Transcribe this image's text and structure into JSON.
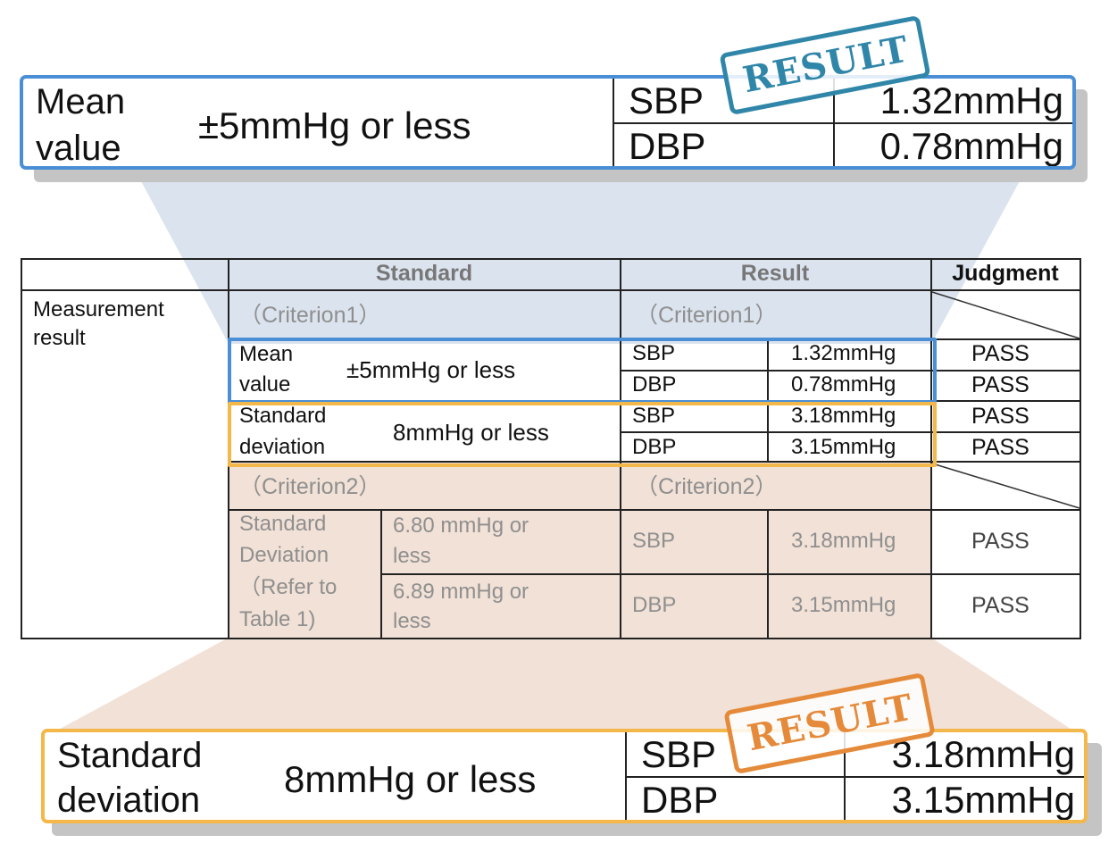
{
  "top_callout": {
    "label_line1": "Mean",
    "label_line2": "value",
    "standard": "±5mmHg or less",
    "rows": [
      {
        "name": "SBP",
        "value": "1.32mmHg"
      },
      {
        "name": "DBP",
        "value": "0.78mmHg"
      }
    ],
    "stamp": "RESULT"
  },
  "bottom_callout": {
    "label_line1": "Standard",
    "label_line2": "deviation",
    "standard": "8mmHg or less",
    "rows": [
      {
        "name": "SBP",
        "value": "3.18mmHg"
      },
      {
        "name": "DBP",
        "value": "3.15mmHg"
      }
    ],
    "stamp": "RESULT"
  },
  "table": {
    "headers": {
      "standard": "Standard",
      "result": "Result",
      "judgment": "Judgment"
    },
    "row_label_line1": "Measurement",
    "row_label_line2": "result",
    "criterion1": {
      "standard_label": "（Criterion1）",
      "result_label": "（Criterion1）",
      "mean": {
        "label_line1": "Mean",
        "label_line2": "value",
        "standard": "±5mmHg or less",
        "rows": [
          {
            "name": "SBP",
            "value": "1.32mmHg",
            "judgment": "PASS"
          },
          {
            "name": "DBP",
            "value": "0.78mmHg",
            "judgment": "PASS"
          }
        ]
      },
      "sd": {
        "label_line1": "Standard",
        "label_line2": "deviation",
        "standard": "8mmHg or less",
        "rows": [
          {
            "name": "SBP",
            "value": "3.18mmHg",
            "judgment": "PASS"
          },
          {
            "name": "DBP",
            "value": "3.15mmHg",
            "judgment": "PASS"
          }
        ]
      }
    },
    "criterion2": {
      "standard_label": "（Criterion2）",
      "result_label": "（Criterion2）",
      "label_line1": "Standard",
      "label_line2": "Deviation",
      "label_line3": "（Refer to",
      "label_line4": "Table 1)",
      "rows": [
        {
          "std_line1": "6.80 mmHg or",
          "std_line2": "less",
          "name": "SBP",
          "value": "3.18mmHg",
          "judgment": "PASS"
        },
        {
          "std_line1": "6.89 mmHg or",
          "std_line2": "less",
          "name": "DBP",
          "value": "3.15mmHg",
          "judgment": "PASS"
        }
      ]
    }
  },
  "colors": {
    "blue_highlight": "#4a8fd6",
    "orange_highlight": "#f4b74a",
    "blue_stamp": "#2f86a8",
    "orange_stamp": "#e58a3a",
    "blue_zoom_fill": "#dbe3ee",
    "orange_zoom_fill": "#f1e1d6"
  }
}
